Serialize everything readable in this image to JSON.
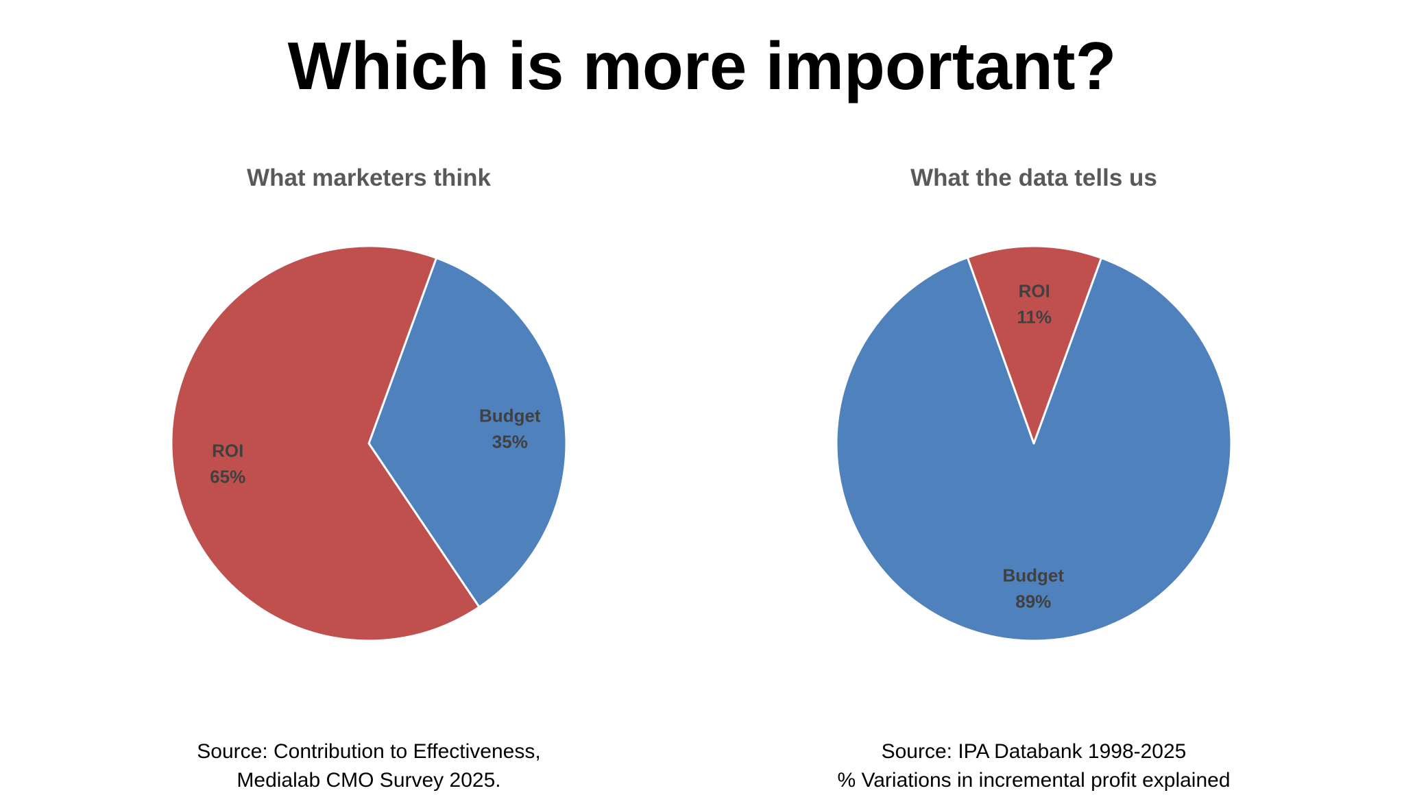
{
  "title": "Which is more important?",
  "colors": {
    "budget": "#4f81bd",
    "roi": "#c0504d",
    "slice_border": "#ffffff",
    "subtitle": "#595959",
    "slice_label": "#404040"
  },
  "chart_data": [
    {
      "type": "pie",
      "title": "What marketers think",
      "categories": [
        "Budget",
        "ROI"
      ],
      "values": [
        35,
        65
      ],
      "labels": [
        {
          "name": "Budget",
          "value": "35%"
        },
        {
          "name": "ROI",
          "value": "65%"
        }
      ],
      "source_lines": [
        "Source: Contribution to Effectiveness,",
        "Medialab CMO Survey 2025."
      ]
    },
    {
      "type": "pie",
      "title": "What the data tells us",
      "categories": [
        "Budget",
        "ROI"
      ],
      "values": [
        89,
        11
      ],
      "labels": [
        {
          "name": "Budget",
          "value": "89%"
        },
        {
          "name": "ROI",
          "value": "11%"
        }
      ],
      "source_lines": [
        "Source: IPA Databank 1998-2025",
        "% Variations in incremental profit explained"
      ]
    }
  ]
}
